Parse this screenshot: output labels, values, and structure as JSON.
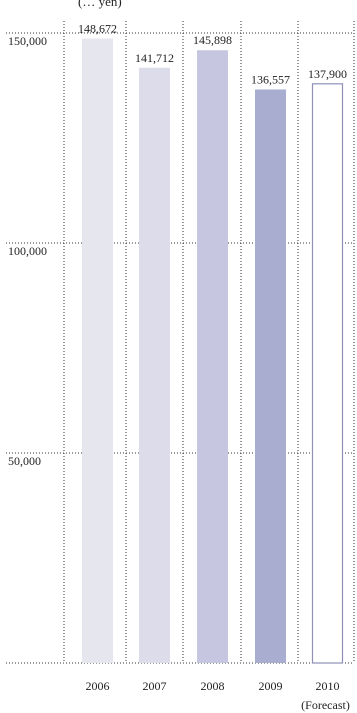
{
  "header": {
    "partial_caption": "(… yen)"
  },
  "chart_data": {
    "type": "bar",
    "title": "",
    "xlabel": "",
    "ylabel": "",
    "categories": [
      "2006",
      "2007",
      "2008",
      "2009",
      "2010"
    ],
    "category_sublabels": [
      "",
      "",
      "",
      "",
      "(Forecast)"
    ],
    "values": [
      148672,
      141712,
      145898,
      136557,
      137900
    ],
    "value_labels": [
      "148,672",
      "141,712",
      "145,898",
      "136,557",
      "137,900"
    ],
    "ylim": [
      0,
      150000
    ],
    "y_ticks": [
      50000,
      100000,
      150000
    ],
    "y_tick_labels": [
      "50,000",
      "100,000",
      "150,000"
    ],
    "grid": true,
    "bar_colors": [
      "#e6e6ee",
      "#dcdcea",
      "#c6c6e0",
      "#a9aed0",
      "#ffffff"
    ],
    "bar_outline_colors": [
      "",
      "",
      "",
      "",
      "#8f8fb8"
    ]
  }
}
